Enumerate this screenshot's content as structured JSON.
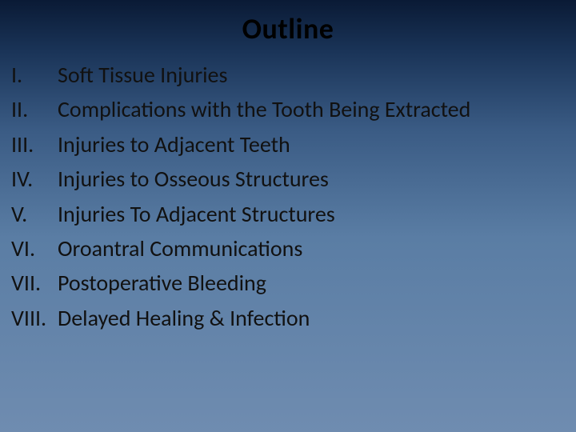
{
  "slide": {
    "title": "Outline",
    "title_color": "#000000",
    "title_fontsize": 36,
    "background_gradient": [
      "#0a1a35",
      "#1a3458",
      "#3a5b84",
      "#5a7da4",
      "#6f8cb0"
    ],
    "text_color": "#111111",
    "body_fontsize": 28,
    "items": [
      {
        "marker": "I.",
        "text": "Soft Tissue Injuries"
      },
      {
        "marker": "II.",
        "text": "Complications with the Tooth Being Extracted"
      },
      {
        "marker": "III.",
        "text": "Injuries to Adjacent Teeth"
      },
      {
        "marker": "IV.",
        "text": "Injuries to Osseous Structures"
      },
      {
        "marker": "V.",
        "text": "Injuries To Adjacent Structures"
      },
      {
        "marker": "VI.",
        "text": "Oroantral Communications"
      },
      {
        "marker": "VII.",
        "text": "Postoperative Bleeding"
      },
      {
        "marker": "VIII.",
        "text": "Delayed Healing & Infection"
      }
    ]
  }
}
